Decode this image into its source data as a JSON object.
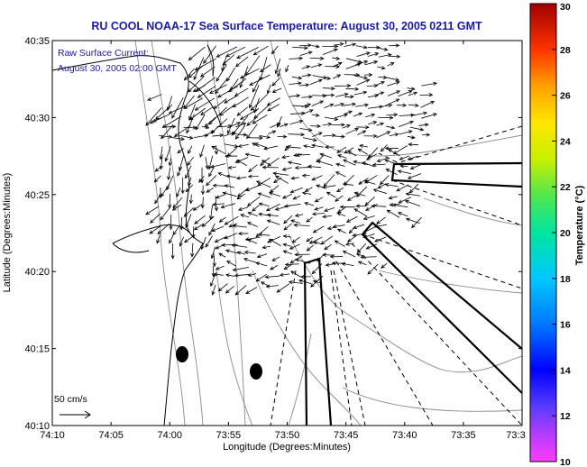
{
  "title": "RU COOL  NOAA-17  Sea Surface Temperature:  August 30, 2005 0211 GMT",
  "legend": {
    "line1": "Raw Surface Current:",
    "line2": "August 30, 2005 02:00 GMT"
  },
  "scale_label": "50 cm/s",
  "x_axis": {
    "label": "Longitude (Degrees:Minutes)",
    "ticks": [
      "74:10",
      "74:05",
      "74:00",
      "73:55",
      "73:50",
      "73:45",
      "73:40",
      "73:35",
      "73:3"
    ]
  },
  "y_axis": {
    "label": "Latitude (Degrees:Minutes)",
    "ticks": [
      "40:35",
      "40:30",
      "40:25",
      "40:20",
      "40:15",
      "40:10"
    ]
  },
  "colorbar": {
    "label": "Temperature (°C)",
    "ticks": [
      "30",
      "28",
      "26",
      "24",
      "22",
      "20",
      "18",
      "16",
      "14",
      "12",
      "10"
    ],
    "min": 10,
    "max": 30
  },
  "colors": {
    "title": "#1a1aa6",
    "vector": "#000000",
    "coastline": "#000000",
    "bathymetry": "#8a8a8a"
  }
}
